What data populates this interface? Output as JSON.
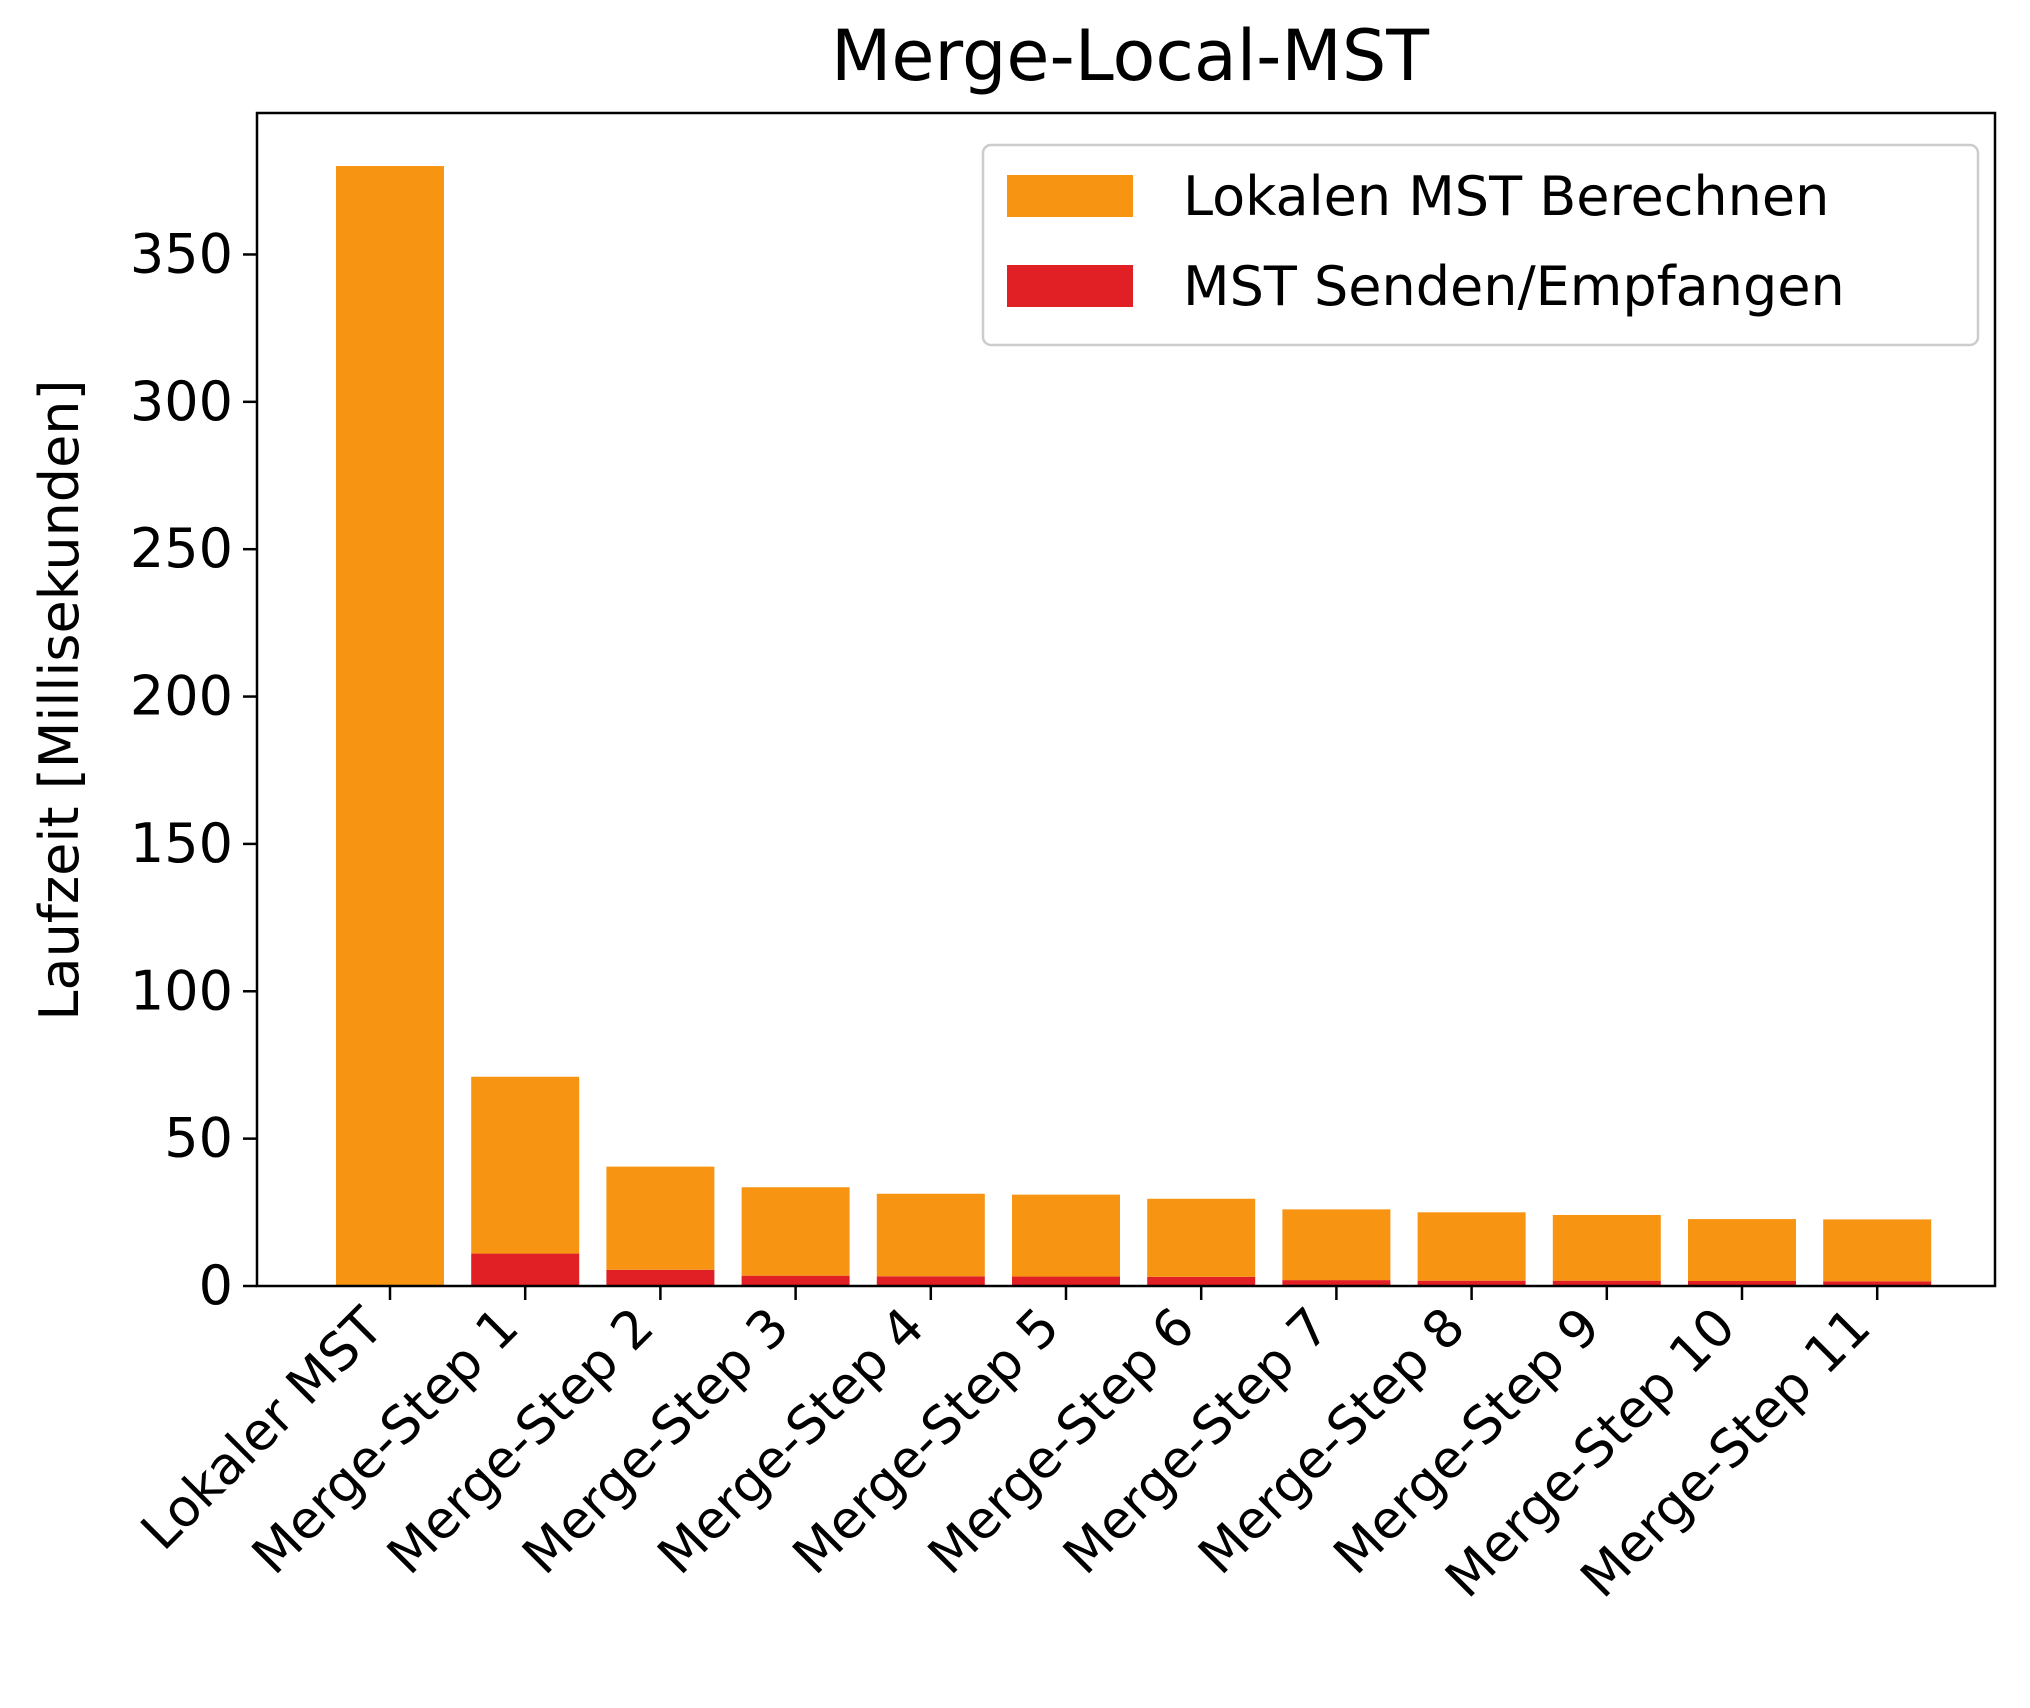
{
  "chart_data": {
    "type": "bar",
    "stacked": true,
    "title": "Merge-Local-MST",
    "xlabel": "",
    "ylabel": "Laufzeit [Millisekunden]",
    "ylim": [
      0,
      398
    ],
    "yticks": [
      0,
      50,
      100,
      150,
      200,
      250,
      300,
      350
    ],
    "grid": false,
    "legend_position": "top-right",
    "categories": [
      "Lokaler MST",
      "Merge-Step 1",
      "Merge-Step 2",
      "Merge-Step 3",
      "Merge-Step 4",
      "Merge-Step 5",
      "Merge-Step 6",
      "Merge-Step 7",
      "Merge-Step 8",
      "Merge-Step 9",
      "Merge-Step 10",
      "Merge-Step 11"
    ],
    "series": [
      {
        "name": "MST Senden/Empfangen",
        "color": "#e02024",
        "values": [
          0,
          11,
          5.5,
          3.5,
          3.3,
          3.2,
          3.1,
          2,
          1.8,
          1.8,
          1.7,
          1.6
        ]
      },
      {
        "name": "Lokalen MST Berechnen",
        "color": "#f79412",
        "values": [
          380,
          60,
          35,
          30,
          28,
          27.8,
          26.5,
          24,
          23.2,
          22.3,
          21,
          21
        ]
      }
    ],
    "legend_order": [
      "Lokalen MST Berechnen",
      "MST Senden/Empfangen"
    ]
  }
}
